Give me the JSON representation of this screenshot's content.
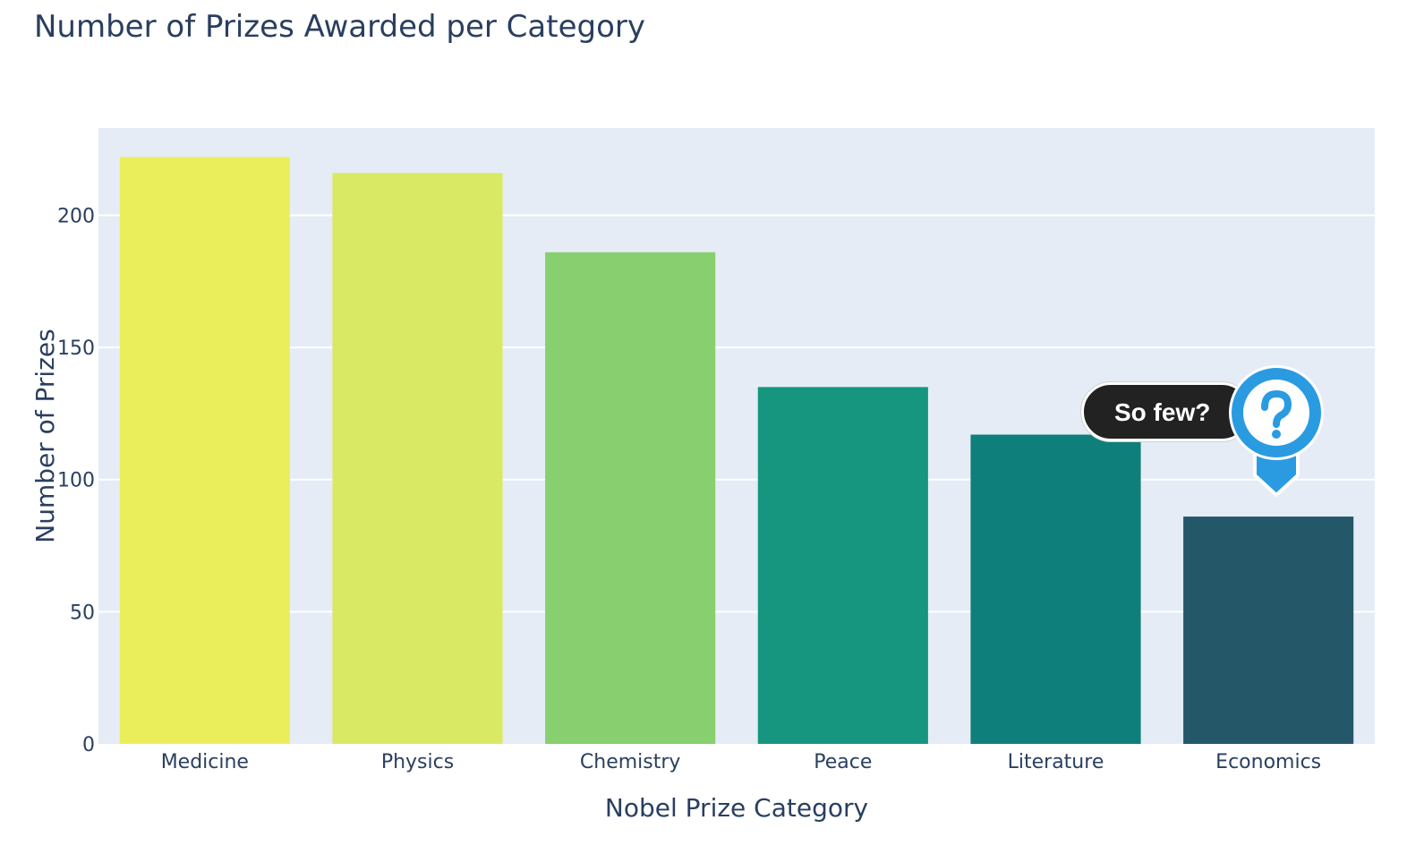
{
  "chart_data": {
    "type": "bar",
    "title": "Number of Prizes Awarded per Category",
    "xlabel": "Nobel Prize Category",
    "ylabel": "Number of Prizes",
    "categories": [
      "Medicine",
      "Physics",
      "Chemistry",
      "Peace",
      "Literature",
      "Economics"
    ],
    "values": [
      222,
      216,
      186,
      135,
      117,
      86
    ],
    "ylim": [
      0,
      233
    ],
    "yticks": [
      0,
      50,
      100,
      150,
      200
    ],
    "grid": true,
    "colors": [
      "#eaee5b",
      "#dae963",
      "#88cf6f",
      "#16967f",
      "#0f7f7b",
      "#245869"
    ],
    "plot_background": "#e5ecf6",
    "text_color": "#2a3f5f"
  },
  "annotation": {
    "text": "So few?",
    "icon": "question-mark-icon",
    "target_category": "Economics",
    "pill_color": "#222222",
    "marker_color": "#2a9be0"
  }
}
